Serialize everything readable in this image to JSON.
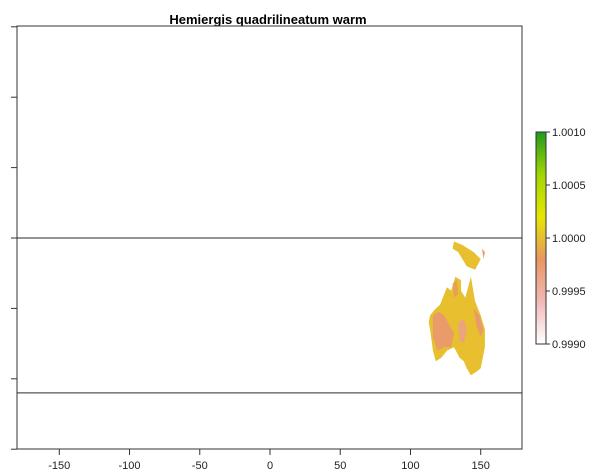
{
  "chart_data": {
    "type": "heatmap",
    "title": "Hemiergis quadrilineatum warm",
    "xlabel": "",
    "ylabel": "",
    "xlim": [
      -180,
      180
    ],
    "ylim": [
      -90,
      90
    ],
    "x_ticks": [
      -150,
      -100,
      -50,
      0,
      50,
      100,
      150
    ],
    "x_tick_labels": [
      "-150",
      "-100",
      "-50",
      "0",
      "50",
      "100",
      "150"
    ],
    "y_ticks": [
      -80,
      -60,
      -40,
      -20,
      0,
      20,
      40,
      60,
      80
    ],
    "reference_lines_y": [
      0,
      -44
    ],
    "legend": {
      "placement": "right",
      "min": 0.999,
      "max": 1.001,
      "ticks": [
        0.999,
        0.9995,
        1.0,
        1.0005,
        1.001
      ],
      "tick_labels": [
        "0.9990",
        "0.9995",
        "1.0000",
        "1.0005",
        "1.0010"
      ],
      "colors": [
        "#ffffff",
        "#f2b8b8",
        "#e8975f",
        "#e6e600",
        "#a0d600",
        "#1f9a1f"
      ]
    },
    "regions": [
      {
        "name": "",
        "value": 1.0,
        "polygon": [
          [
            113,
            -24
          ],
          [
            114,
            -26
          ],
          [
            116,
            -32
          ],
          [
            118,
            -35
          ],
          [
            122,
            -34
          ],
          [
            126,
            -32
          ],
          [
            131,
            -31
          ],
          [
            135,
            -34
          ],
          [
            138,
            -35
          ],
          [
            140,
            -37
          ],
          [
            143,
            -39
          ],
          [
            147,
            -38
          ],
          [
            150,
            -37
          ],
          [
            153,
            -31
          ],
          [
            153,
            -26
          ],
          [
            150,
            -22
          ],
          [
            146,
            -18
          ],
          [
            143,
            -11
          ],
          [
            141,
            -14
          ],
          [
            139,
            -17
          ],
          [
            136,
            -15
          ],
          [
            136,
            -12
          ],
          [
            132,
            -11
          ],
          [
            129,
            -15
          ],
          [
            126,
            -14
          ],
          [
            123,
            -17
          ],
          [
            121,
            -19
          ],
          [
            118,
            -20
          ],
          [
            114,
            -22
          ]
        ]
      },
      {
        "name": "",
        "value": 0.99975,
        "polygon": [
          [
            116,
            -22
          ],
          [
            120,
            -21
          ],
          [
            124,
            -22
          ],
          [
            128,
            -25
          ],
          [
            131,
            -27
          ],
          [
            129,
            -31
          ],
          [
            124,
            -31
          ],
          [
            119,
            -32
          ],
          [
            116,
            -28
          ]
        ]
      },
      {
        "name": "",
        "value": 0.99965,
        "polygon": [
          [
            134,
            -24
          ],
          [
            138,
            -23
          ],
          [
            140,
            -26
          ],
          [
            138,
            -30
          ],
          [
            135,
            -29
          ]
        ]
      },
      {
        "name": "",
        "value": 0.99975,
        "polygon": [
          [
            145,
            -20
          ],
          [
            149,
            -22
          ],
          [
            152,
            -26
          ],
          [
            150,
            -28
          ],
          [
            147,
            -25
          ]
        ]
      },
      {
        "name": "",
        "value": 0.99985,
        "polygon": [
          [
            130,
            -13
          ],
          [
            133,
            -12
          ],
          [
            134,
            -16
          ],
          [
            131,
            -17
          ]
        ]
      },
      {
        "name": "",
        "value": 1.0,
        "polygon": [
          [
            131,
            -1
          ],
          [
            137,
            -2
          ],
          [
            145,
            -4
          ],
          [
            150,
            -6
          ],
          [
            146,
            -9
          ],
          [
            140,
            -8
          ],
          [
            134,
            -4
          ],
          [
            130,
            -3
          ]
        ]
      },
      {
        "name": "",
        "value": 0.9998,
        "polygon": [
          [
            151,
            -3
          ],
          [
            153,
            -4
          ],
          [
            152,
            -6
          ]
        ]
      }
    ]
  }
}
